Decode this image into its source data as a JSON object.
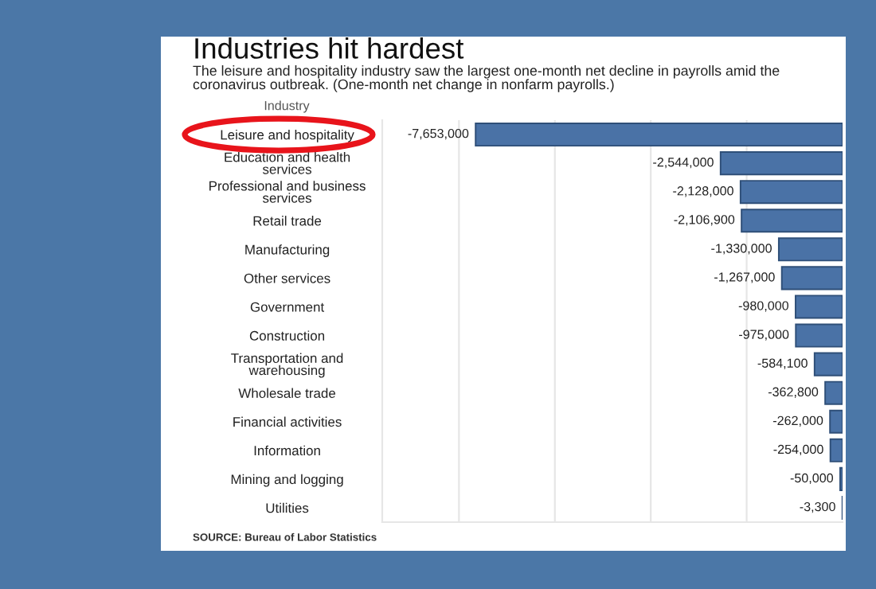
{
  "chart_data": {
    "type": "bar",
    "orientation": "horizontal",
    "title": "Industries hit hardest",
    "subtitle": "The leisure and hospitality industry saw the largest one-month net decline in payrolls amid the\ncoronavirus outbreak. (One-month net change in nonfarm payrolls.)",
    "ylabel": "Industry",
    "categories": [
      "Leisure and hospitality",
      "Education and health\nservices",
      "Professional and business\nservices",
      "Retail trade",
      "Manufacturing",
      "Other services",
      "Government",
      "Construction",
      "Transportation and\nwarehousing",
      "Wholesale trade",
      "Financial activities",
      "Information",
      "Mining and logging",
      "Utilities"
    ],
    "values": [
      -7653000,
      -2544000,
      -2128000,
      -2106900,
      -1330000,
      -1267000,
      -980000,
      -975000,
      -584100,
      -362800,
      -262000,
      -254000,
      -50000,
      -3300
    ],
    "value_labels": [
      "-7,653,000",
      "-2,544,000",
      "-2,128,000",
      "-2,106,900",
      "-1,330,000",
      "-1,267,000",
      "-980,000",
      "-975,000",
      "-584,100",
      "-362,800",
      "-262,000",
      "-254,000",
      "-50,000",
      "-3,300"
    ],
    "color": "#4a72a6",
    "xlim": [
      -9600000,
      0
    ],
    "xticks": [
      {
        "value": -8000000,
        "label": null
      },
      {
        "value": -6000000,
        "label": null
      },
      {
        "value": -4000000,
        "label": null
      },
      {
        "value": -2000000,
        "label": null
      }
    ],
    "grid": "x",
    "tick_labels": "y",
    "annotations": [
      "SOURCE: Bureau of Labor Statistics"
    ]
  }
}
